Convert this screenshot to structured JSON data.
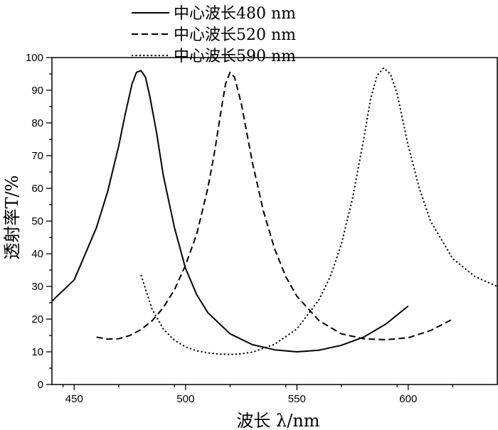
{
  "chart_data": {
    "type": "line",
    "xlabel": "波长 λ/nm",
    "ylabel": "透射率T/%",
    "xlim": [
      440,
      640
    ],
    "ylim": [
      0,
      100
    ],
    "x_ticks": [
      450,
      500,
      550,
      600
    ],
    "y_ticks": [
      0,
      10,
      20,
      30,
      40,
      50,
      60,
      70,
      80,
      90,
      100
    ],
    "grid": false,
    "legend_position": "top",
    "series": [
      {
        "name": "中心波长480 nm",
        "style": "solid",
        "x": [
          440,
          450,
          460,
          465,
          470,
          473,
          476,
          478,
          480,
          482,
          484,
          487,
          490,
          495,
          500,
          505,
          510,
          520,
          530,
          540,
          550,
          560,
          570,
          580,
          590,
          600
        ],
        "y": [
          25.5,
          32,
          48,
          59,
          73,
          83,
          92,
          95.5,
          96,
          94,
          88,
          77,
          64,
          48,
          35.5,
          27.5,
          22,
          15.5,
          12.2,
          10.6,
          10,
          10.5,
          12,
          14.5,
          18.5,
          24
        ]
      },
      {
        "name": "中心波长520 nm",
        "style": "dashed",
        "x": [
          460,
          465,
          470,
          475,
          480,
          485,
          490,
          495,
          500,
          505,
          510,
          513,
          516,
          518,
          520,
          522,
          525,
          530,
          535,
          540,
          545,
          550,
          560,
          570,
          580,
          590,
          600,
          610,
          620
        ],
        "y": [
          14.5,
          13.9,
          14,
          15,
          16.8,
          19.5,
          23.5,
          29,
          36.5,
          46,
          60,
          71,
          84,
          92,
          95.5,
          94,
          86,
          68,
          53,
          41.5,
          33,
          27,
          19.5,
          15.5,
          14,
          13.7,
          14.3,
          16.5,
          20
        ]
      },
      {
        "name": "中心波长590 nm",
        "style": "dotted",
        "x": [
          480,
          485,
          490,
          495,
          500,
          505,
          510,
          515,
          520,
          525,
          530,
          540,
          550,
          560,
          565,
          570,
          575,
          580,
          583,
          586,
          589,
          592,
          595,
          600,
          605,
          610,
          620,
          630,
          640
        ],
        "y": [
          33.5,
          23,
          17,
          13.5,
          11.5,
          10.3,
          9.7,
          9.3,
          9.2,
          9.4,
          9.9,
          12.3,
          17,
          26,
          33,
          43,
          57,
          75,
          87,
          94.5,
          96.8,
          95,
          89,
          73,
          60,
          50,
          38.5,
          33,
          30
        ]
      }
    ]
  }
}
